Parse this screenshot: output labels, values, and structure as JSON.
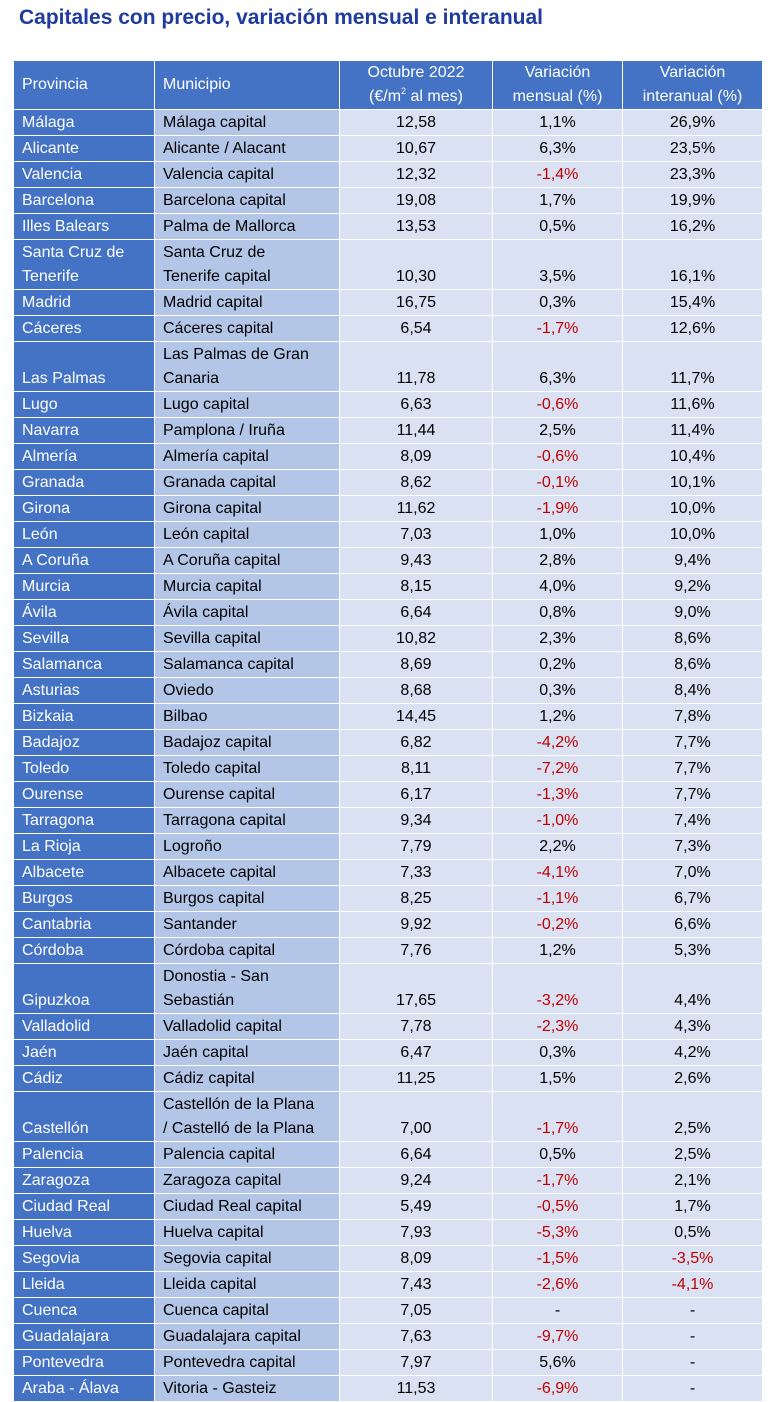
{
  "title": "Capitales con precio, variación mensual e interanual",
  "colors": {
    "header_bg": "#4472c4",
    "province_bg": "#4472c4",
    "municipio_bg": "#b4c6e7",
    "value_bg": "#d9e1f2",
    "negative": "#c00000",
    "title": "#1f3ba0"
  },
  "headers": {
    "provincia": "Provincia",
    "municipio": "Municipio",
    "precio_line1": "Octubre 2022",
    "precio_unit_pre": "(€/m",
    "precio_unit_sup": "2",
    "precio_unit_post": " al mes)",
    "mensual_line1": "Variación",
    "mensual_line2": "mensual (%)",
    "interanual_line1": "Variación",
    "interanual_line2": "interanual (%)"
  },
  "rows": [
    {
      "provincia": [
        "Málaga"
      ],
      "municipio": [
        "Málaga capital"
      ],
      "precio": "12,58",
      "mensual": "1,1%",
      "interanual": "26,9%"
    },
    {
      "provincia": [
        "Alicante"
      ],
      "municipio": [
        "Alicante / Alacant"
      ],
      "precio": "10,67",
      "mensual": "6,3%",
      "interanual": "23,5%"
    },
    {
      "provincia": [
        "Valencia"
      ],
      "municipio": [
        "Valencia capital"
      ],
      "precio": "12,32",
      "mensual": "-1,4%",
      "interanual": "23,3%"
    },
    {
      "provincia": [
        "Barcelona"
      ],
      "municipio": [
        "Barcelona capital"
      ],
      "precio": "19,08",
      "mensual": "1,7%",
      "interanual": "19,9%"
    },
    {
      "provincia": [
        "Illes Balears"
      ],
      "municipio": [
        "Palma de Mallorca"
      ],
      "precio": "13,53",
      "mensual": "0,5%",
      "interanual": "16,2%"
    },
    {
      "provincia": [
        "Santa Cruz de",
        "Tenerife"
      ],
      "municipio": [
        "Santa Cruz de",
        "Tenerife capital"
      ],
      "precio": "10,30",
      "mensual": "3,5%",
      "interanual": "16,1%"
    },
    {
      "provincia": [
        "Madrid"
      ],
      "municipio": [
        "Madrid capital"
      ],
      "precio": "16,75",
      "mensual": "0,3%",
      "interanual": "15,4%"
    },
    {
      "provincia": [
        "Cáceres"
      ],
      "municipio": [
        "Cáceres capital"
      ],
      "precio": "6,54",
      "mensual": "-1,7%",
      "interanual": "12,6%"
    },
    {
      "provincia": [
        "Las Palmas"
      ],
      "municipio": [
        "Las Palmas de Gran",
        "Canaria"
      ],
      "precio": "11,78",
      "mensual": "6,3%",
      "interanual": "11,7%"
    },
    {
      "provincia": [
        "Lugo"
      ],
      "municipio": [
        "Lugo capital"
      ],
      "precio": "6,63",
      "mensual": "-0,6%",
      "interanual": "11,6%"
    },
    {
      "provincia": [
        "Navarra"
      ],
      "municipio": [
        "Pamplona / Iruña"
      ],
      "precio": "11,44",
      "mensual": "2,5%",
      "interanual": "11,4%"
    },
    {
      "provincia": [
        "Almería"
      ],
      "municipio": [
        "Almería capital"
      ],
      "precio": "8,09",
      "mensual": "-0,6%",
      "interanual": "10,4%"
    },
    {
      "provincia": [
        "Granada"
      ],
      "municipio": [
        "Granada capital"
      ],
      "precio": "8,62",
      "mensual": "-0,1%",
      "interanual": "10,1%"
    },
    {
      "provincia": [
        "Girona"
      ],
      "municipio": [
        "Girona capital"
      ],
      "precio": "11,62",
      "mensual": "-1,9%",
      "interanual": "10,0%"
    },
    {
      "provincia": [
        "León"
      ],
      "municipio": [
        "León capital"
      ],
      "precio": "7,03",
      "mensual": "1,0%",
      "interanual": "10,0%"
    },
    {
      "provincia": [
        "A Coruña"
      ],
      "municipio": [
        "A Coruña capital"
      ],
      "precio": "9,43",
      "mensual": "2,8%",
      "interanual": "9,4%"
    },
    {
      "provincia": [
        "Murcia"
      ],
      "municipio": [
        "Murcia capital"
      ],
      "precio": "8,15",
      "mensual": "4,0%",
      "interanual": "9,2%"
    },
    {
      "provincia": [
        "Ávila"
      ],
      "municipio": [
        "Ávila capital"
      ],
      "precio": "6,64",
      "mensual": "0,8%",
      "interanual": "9,0%"
    },
    {
      "provincia": [
        "Sevilla"
      ],
      "municipio": [
        "Sevilla capital"
      ],
      "precio": "10,82",
      "mensual": "2,3%",
      "interanual": "8,6%"
    },
    {
      "provincia": [
        "Salamanca"
      ],
      "municipio": [
        "Salamanca capital"
      ],
      "precio": "8,69",
      "mensual": "0,2%",
      "interanual": "8,6%"
    },
    {
      "provincia": [
        "Asturias"
      ],
      "municipio": [
        "Oviedo"
      ],
      "precio": "8,68",
      "mensual": "0,3%",
      "interanual": "8,4%"
    },
    {
      "provincia": [
        "Bizkaia"
      ],
      "municipio": [
        "Bilbao"
      ],
      "precio": "14,45",
      "mensual": "1,2%",
      "interanual": "7,8%"
    },
    {
      "provincia": [
        "Badajoz"
      ],
      "municipio": [
        "Badajoz capital"
      ],
      "precio": "6,82",
      "mensual": "-4,2%",
      "interanual": "7,7%"
    },
    {
      "provincia": [
        "Toledo"
      ],
      "municipio": [
        "Toledo capital"
      ],
      "precio": "8,11",
      "mensual": "-7,2%",
      "interanual": "7,7%"
    },
    {
      "provincia": [
        "Ourense"
      ],
      "municipio": [
        "Ourense capital"
      ],
      "precio": "6,17",
      "mensual": "-1,3%",
      "interanual": "7,7%"
    },
    {
      "provincia": [
        "Tarragona"
      ],
      "municipio": [
        "Tarragona capital"
      ],
      "precio": "9,34",
      "mensual": "-1,0%",
      "interanual": "7,4%"
    },
    {
      "provincia": [
        "La Rioja"
      ],
      "municipio": [
        "Logroño"
      ],
      "precio": "7,79",
      "mensual": "2,2%",
      "interanual": "7,3%"
    },
    {
      "provincia": [
        "Albacete"
      ],
      "municipio": [
        "Albacete capital"
      ],
      "precio": "7,33",
      "mensual": "-4,1%",
      "interanual": "7,0%"
    },
    {
      "provincia": [
        "Burgos"
      ],
      "municipio": [
        "Burgos capital"
      ],
      "precio": "8,25",
      "mensual": "-1,1%",
      "interanual": "6,7%"
    },
    {
      "provincia": [
        "Cantabria"
      ],
      "municipio": [
        "Santander"
      ],
      "precio": "9,92",
      "mensual": "-0,2%",
      "interanual": "6,6%"
    },
    {
      "provincia": [
        "Córdoba"
      ],
      "municipio": [
        "Córdoba capital"
      ],
      "precio": "7,76",
      "mensual": "1,2%",
      "interanual": "5,3%"
    },
    {
      "provincia": [
        "Gipuzkoa"
      ],
      "municipio": [
        "Donostia - San",
        "Sebastián"
      ],
      "precio": "17,65",
      "mensual": "-3,2%",
      "interanual": "4,4%"
    },
    {
      "provincia": [
        "Valladolid"
      ],
      "municipio": [
        "Valladolid capital"
      ],
      "precio": "7,78",
      "mensual": "-2,3%",
      "interanual": "4,3%"
    },
    {
      "provincia": [
        "Jaén"
      ],
      "municipio": [
        "Jaén capital"
      ],
      "precio": "6,47",
      "mensual": "0,3%",
      "interanual": "4,2%"
    },
    {
      "provincia": [
        "Cádiz"
      ],
      "municipio": [
        "Cádiz capital"
      ],
      "precio": "11,25",
      "mensual": "1,5%",
      "interanual": "2,6%"
    },
    {
      "provincia": [
        "Castellón"
      ],
      "municipio": [
        "Castellón de la Plana",
        "/ Castelló de la Plana"
      ],
      "precio": "7,00",
      "mensual": "-1,7%",
      "interanual": "2,5%"
    },
    {
      "provincia": [
        "Palencia"
      ],
      "municipio": [
        "Palencia capital"
      ],
      "precio": "6,64",
      "mensual": "0,5%",
      "interanual": "2,5%"
    },
    {
      "provincia": [
        "Zaragoza"
      ],
      "municipio": [
        "Zaragoza capital"
      ],
      "precio": "9,24",
      "mensual": "-1,7%",
      "interanual": "2,1%"
    },
    {
      "provincia": [
        "Ciudad Real"
      ],
      "municipio": [
        "Ciudad Real capital"
      ],
      "precio": "5,49",
      "mensual": "-0,5%",
      "interanual": "1,7%"
    },
    {
      "provincia": [
        "Huelva"
      ],
      "municipio": [
        "Huelva capital"
      ],
      "precio": "7,93",
      "mensual": "-5,3%",
      "interanual": "0,5%"
    },
    {
      "provincia": [
        "Segovia"
      ],
      "municipio": [
        "Segovia capital"
      ],
      "precio": "8,09",
      "mensual": "-1,5%",
      "interanual": "-3,5%"
    },
    {
      "provincia": [
        "Lleida"
      ],
      "municipio": [
        "Lleida capital"
      ],
      "precio": "7,43",
      "mensual": "-2,6%",
      "interanual": "-4,1%"
    },
    {
      "provincia": [
        "Cuenca"
      ],
      "municipio": [
        "Cuenca capital"
      ],
      "precio": "7,05",
      "mensual": "-",
      "interanual": "-"
    },
    {
      "provincia": [
        "Guadalajara"
      ],
      "municipio": [
        "Guadalajara capital"
      ],
      "precio": "7,63",
      "mensual": "-9,7%",
      "interanual": "-"
    },
    {
      "provincia": [
        "Pontevedra"
      ],
      "municipio": [
        "Pontevedra capital"
      ],
      "precio": "7,97",
      "mensual": "5,6%",
      "interanual": "-"
    },
    {
      "provincia": [
        "Araba - Álava"
      ],
      "municipio": [
        "Vitoria - Gasteiz"
      ],
      "precio": "11,53",
      "mensual": "-6,9%",
      "interanual": "-"
    }
  ]
}
